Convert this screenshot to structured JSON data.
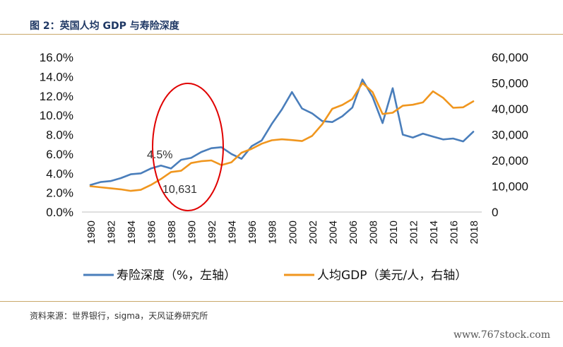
{
  "header": {
    "title": "图 2：英国人均 GDP 与寿险深度"
  },
  "footer": {
    "source": "资料来源：世界银行，sigma，天风证券研究所",
    "watermark": "www.767stock.com"
  },
  "chart_data": {
    "type": "line",
    "x": [
      1980,
      1981,
      1982,
      1983,
      1984,
      1985,
      1986,
      1987,
      1988,
      1989,
      1990,
      1991,
      1992,
      1993,
      1994,
      1995,
      1996,
      1997,
      1998,
      1999,
      2000,
      2001,
      2002,
      2003,
      2004,
      2005,
      2006,
      2007,
      2008,
      2009,
      2010,
      2011,
      2012,
      2013,
      2014,
      2015,
      2016,
      2017,
      2018
    ],
    "x_tick_labels": [
      "1980",
      "1982",
      "1984",
      "1986",
      "1988",
      "1990",
      "1992",
      "1994",
      "1996",
      "1998",
      "2000",
      "2002",
      "2004",
      "2006",
      "2008",
      "2010",
      "2012",
      "2014",
      "2016",
      "2018"
    ],
    "series": [
      {
        "name": "寿险深度（%，左轴）",
        "axis": "left",
        "color": "#4a7ebb",
        "values": [
          2.8,
          3.1,
          3.2,
          3.5,
          3.9,
          4.0,
          4.5,
          4.8,
          4.5,
          5.4,
          5.6,
          6.2,
          6.6,
          6.7,
          6.0,
          5.5,
          6.8,
          7.4,
          9.1,
          10.6,
          12.4,
          10.7,
          10.2,
          9.4,
          9.3,
          9.9,
          10.8,
          13.7,
          11.9,
          9.2,
          12.8,
          8.0,
          7.7,
          8.1,
          7.8,
          7.5,
          7.6,
          7.3,
          8.3
        ]
      },
      {
        "name": "人均GDP（美元/人，右轴）",
        "axis": "right",
        "color": "#f0961e",
        "values": [
          10000,
          9600,
          9200,
          8800,
          8200,
          8600,
          10500,
          12800,
          15500,
          16000,
          19000,
          19700,
          20000,
          18200,
          19300,
          23000,
          24500,
          26500,
          27800,
          28200,
          27900,
          27500,
          29500,
          34000,
          40000,
          41500,
          43800,
          50000,
          46500,
          38000,
          38500,
          41200,
          41600,
          42500,
          46800,
          44300,
          40400,
          40600,
          42900
        ]
      }
    ],
    "y_left": {
      "ylim": [
        0,
        0.16
      ],
      "tick_labels": [
        "0.0%",
        "2.0%",
        "4.0%",
        "6.0%",
        "8.0%",
        "10.0%",
        "12.0%",
        "14.0%",
        "16.0%"
      ]
    },
    "y_right": {
      "ylim": [
        0,
        60000
      ],
      "tick_labels": [
        "0",
        "10,000",
        "20,000",
        "30,000",
        "40,000",
        "50,000",
        "60,000"
      ]
    },
    "annotations": [
      "4.5%",
      "10,631"
    ],
    "legend": {
      "position": "bottom"
    },
    "grid": false
  }
}
